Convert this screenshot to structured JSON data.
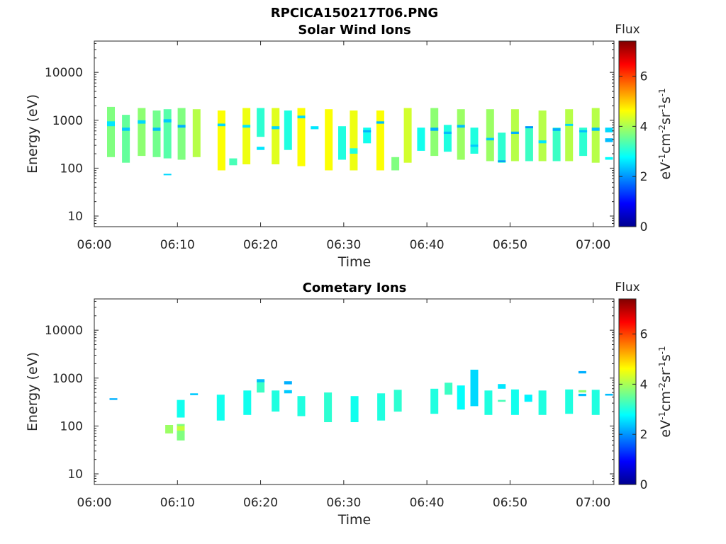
{
  "figure": {
    "filename": "RPCICA150217T06.PNG"
  },
  "colorbar": {
    "label": "Flux",
    "unit_label": "eV-1cm-2sr-1s-1",
    "ticks": [
      0,
      2,
      4,
      6
    ],
    "range": [
      0,
      7.4
    ],
    "colormap": "jet",
    "colors": [
      "#00008f",
      "#0000ff",
      "#00ffff",
      "#ffff00",
      "#ff0000",
      "#800000"
    ]
  },
  "chart_data": [
    {
      "type": "heatmap",
      "title": "Solar Wind Ions",
      "xlabel": "Time",
      "ylabel": "Energy (eV)",
      "x_ticks": [
        "06:00",
        "06:10",
        "06:20",
        "06:30",
        "06:40",
        "06:50",
        "07:00"
      ],
      "y_ticks": [
        "10",
        "100",
        "1000",
        "10000"
      ],
      "y_scale": "log",
      "ylim": [
        6,
        45000
      ],
      "xlim_minutes": [
        0,
        62.5
      ],
      "colorbar_range": [
        0,
        7.4
      ],
      "columns": [
        {
          "t": 2.0,
          "segments": [
            [
              170,
              1900,
              3.7
            ],
            [
              750,
              950,
              2.6
            ]
          ]
        },
        {
          "t": 3.8,
          "segments": [
            [
              130,
              1300,
              3.5
            ],
            [
              600,
              700,
              2.4
            ]
          ]
        },
        {
          "t": 5.7,
          "segments": [
            [
              180,
              1800,
              3.8
            ],
            [
              850,
              1000,
              2.5
            ]
          ]
        },
        {
          "t": 7.5,
          "segments": [
            [
              170,
              1600,
              3.6
            ],
            [
              600,
              700,
              2.3
            ]
          ]
        },
        {
          "t": 8.8,
          "segments": [
            [
              160,
              1700,
              3.4
            ],
            [
              900,
              1050,
              2.4
            ],
            [
              72,
              76,
              2.5
            ]
          ]
        },
        {
          "t": 10.5,
          "segments": [
            [
              150,
              1800,
              3.7
            ],
            [
              700,
              800,
              2.2
            ]
          ]
        },
        {
          "t": 12.3,
          "segments": [
            [
              170,
              1700,
              4.1
            ]
          ]
        },
        {
          "t": 15.3,
          "segments": [
            [
              90,
              1600,
              4.6
            ],
            [
              750,
              850,
              2.5
            ]
          ]
        },
        {
          "t": 16.7,
          "segments": [
            [
              115,
              160,
              3.3
            ]
          ]
        },
        {
          "t": 18.3,
          "segments": [
            [
              120,
              1800,
              4.5
            ],
            [
              700,
              800,
              2.6
            ]
          ]
        },
        {
          "t": 20.0,
          "segments": [
            [
              240,
              280,
              2.6
            ],
            [
              450,
              1800,
              3.1
            ]
          ]
        },
        {
          "t": 21.8,
          "segments": [
            [
              120,
              1800,
              4.4
            ],
            [
              650,
              750,
              2.5
            ]
          ]
        },
        {
          "t": 23.3,
          "segments": [
            [
              240,
              1600,
              3.0
            ]
          ]
        },
        {
          "t": 24.9,
          "segments": [
            [
              110,
              1800,
              4.6
            ],
            [
              1100,
              1250,
              2.5
            ]
          ]
        },
        {
          "t": 26.5,
          "segments": [
            [
              650,
              750,
              2.6
            ]
          ]
        },
        {
          "t": 28.2,
          "segments": [
            [
              90,
              1700,
              4.6
            ]
          ]
        },
        {
          "t": 29.8,
          "segments": [
            [
              150,
              750,
              3.0
            ]
          ]
        },
        {
          "t": 31.2,
          "segments": [
            [
              90,
              1600,
              4.5
            ],
            [
              200,
              260,
              3.0
            ]
          ]
        },
        {
          "t": 32.8,
          "segments": [
            [
              330,
              700,
              2.9
            ],
            [
              560,
              620,
              2.2
            ]
          ]
        },
        {
          "t": 34.4,
          "segments": [
            [
              90,
              1600,
              4.6
            ],
            [
              850,
              950,
              2.3
            ]
          ]
        },
        {
          "t": 36.2,
          "segments": [
            [
              90,
              170,
              3.7
            ]
          ]
        },
        {
          "t": 37.7,
          "segments": [
            [
              130,
              1800,
              4.3
            ]
          ]
        },
        {
          "t": 39.3,
          "segments": [
            [
              230,
              700,
              2.9
            ]
          ]
        },
        {
          "t": 40.9,
          "segments": [
            [
              180,
              1800,
              3.8
            ],
            [
              600,
              700,
              2.2
            ]
          ]
        },
        {
          "t": 42.5,
          "segments": [
            [
              220,
              800,
              3.0
            ],
            [
              520,
              580,
              2.3
            ]
          ]
        },
        {
          "t": 44.1,
          "segments": [
            [
              150,
              1700,
              3.9
            ],
            [
              700,
              800,
              2.3
            ]
          ]
        },
        {
          "t": 45.7,
          "segments": [
            [
              200,
              700,
              3.0
            ],
            [
              280,
              310,
              2.4
            ]
          ]
        },
        {
          "t": 47.6,
          "segments": [
            [
              140,
              1700,
              3.9
            ],
            [
              380,
              430,
              2.4
            ]
          ]
        },
        {
          "t": 49.0,
          "segments": [
            [
              130,
              550,
              3.1
            ],
            [
              135,
              145,
              1.9
            ]
          ]
        },
        {
          "t": 50.6,
          "segments": [
            [
              140,
              1700,
              4.1
            ],
            [
              520,
              580,
              2.2
            ]
          ]
        },
        {
          "t": 52.3,
          "segments": [
            [
              140,
              750,
              3.2
            ],
            [
              680,
              750,
              2.0
            ]
          ]
        },
        {
          "t": 53.9,
          "segments": [
            [
              140,
              1600,
              4.1
            ],
            [
              330,
              380,
              2.6
            ]
          ]
        },
        {
          "t": 55.6,
          "segments": [
            [
              140,
              700,
              3.2
            ],
            [
              600,
              680,
              2.2
            ]
          ]
        },
        {
          "t": 57.1,
          "segments": [
            [
              140,
              1700,
              4.1
            ],
            [
              760,
              840,
              2.5
            ]
          ]
        },
        {
          "t": 58.8,
          "segments": [
            [
              180,
              700,
              3.1
            ],
            [
              560,
              620,
              2.3
            ]
          ]
        },
        {
          "t": 60.3,
          "segments": [
            [
              130,
              1800,
              4.1
            ],
            [
              600,
              700,
              2.3
            ]
          ]
        },
        {
          "t": 61.9,
          "segments": [
            [
              150,
              170,
              2.8
            ],
            [
              350,
              420,
              2.3
            ],
            [
              560,
              700,
              2.5
            ]
          ]
        }
      ]
    },
    {
      "type": "heatmap",
      "title": "Cometary Ions",
      "xlabel": "Time",
      "ylabel": "Energy (eV)",
      "x_ticks": [
        "06:00",
        "06:10",
        "06:20",
        "06:30",
        "06:40",
        "06:50",
        "07:00"
      ],
      "y_ticks": [
        "10",
        "100",
        "1000",
        "10000"
      ],
      "y_scale": "log",
      "ylim": [
        6,
        45000
      ],
      "xlim_minutes": [
        0,
        62.5
      ],
      "colorbar_range": [
        0,
        7.4
      ],
      "columns": [
        {
          "t": 2.3,
          "segments": [
            [
              350,
              380,
              2.2
            ]
          ]
        },
        {
          "t": 9.0,
          "segments": [
            [
              70,
              105,
              3.9
            ]
          ]
        },
        {
          "t": 10.4,
          "segments": [
            [
              50,
              110,
              3.7
            ],
            [
              150,
              350,
              2.9
            ],
            [
              80,
              100,
              4.2
            ]
          ]
        },
        {
          "t": 12.0,
          "segments": [
            [
              440,
              480,
              2.4
            ]
          ]
        },
        {
          "t": 15.2,
          "segments": [
            [
              130,
              450,
              2.9
            ]
          ]
        },
        {
          "t": 18.4,
          "segments": [
            [
              170,
              550,
              2.9
            ]
          ]
        },
        {
          "t": 20.0,
          "segments": [
            [
              500,
              900,
              3.2
            ],
            [
              820,
              950,
              2.3
            ]
          ]
        },
        {
          "t": 21.8,
          "segments": [
            [
              200,
              550,
              3.0
            ]
          ]
        },
        {
          "t": 23.3,
          "segments": [
            [
              480,
              560,
              2.4
            ],
            [
              740,
              860,
              2.2
            ]
          ]
        },
        {
          "t": 24.9,
          "segments": [
            [
              160,
              420,
              3.0
            ]
          ]
        },
        {
          "t": 28.1,
          "segments": [
            [
              120,
              500,
              3.1
            ]
          ]
        },
        {
          "t": 31.3,
          "segments": [
            [
              120,
              420,
              2.9
            ]
          ]
        },
        {
          "t": 34.5,
          "segments": [
            [
              130,
              480,
              3.0
            ]
          ]
        },
        {
          "t": 36.5,
          "segments": [
            [
              200,
              570,
              3.1
            ]
          ]
        },
        {
          "t": 40.9,
          "segments": [
            [
              180,
              600,
              3.0
            ]
          ]
        },
        {
          "t": 42.6,
          "segments": [
            [
              450,
              800,
              3.2
            ]
          ]
        },
        {
          "t": 44.1,
          "segments": [
            [
              220,
              700,
              2.8
            ]
          ]
        },
        {
          "t": 45.7,
          "segments": [
            [
              260,
              1500,
              2.5
            ]
          ]
        },
        {
          "t": 47.4,
          "segments": [
            [
              170,
              550,
              3.0
            ]
          ]
        },
        {
          "t": 49.0,
          "segments": [
            [
              600,
              750,
              2.6
            ],
            [
              320,
              350,
              3.3
            ]
          ]
        },
        {
          "t": 50.6,
          "segments": [
            [
              170,
              580,
              2.9
            ]
          ]
        },
        {
          "t": 52.2,
          "segments": [
            [
              320,
              450,
              2.7
            ]
          ]
        },
        {
          "t": 53.9,
          "segments": [
            [
              170,
              550,
              3.0
            ]
          ]
        },
        {
          "t": 57.1,
          "segments": [
            [
              180,
              580,
              3.0
            ]
          ]
        },
        {
          "t": 58.7,
          "segments": [
            [
              1250,
              1400,
              2.2
            ],
            [
              500,
              560,
              3.8
            ],
            [
              420,
              470,
              2.3
            ]
          ]
        },
        {
          "t": 60.3,
          "segments": [
            [
              170,
              570,
              3.0
            ]
          ]
        },
        {
          "t": 61.9,
          "segments": [
            [
              430,
              470,
              2.3
            ]
          ]
        }
      ]
    }
  ]
}
